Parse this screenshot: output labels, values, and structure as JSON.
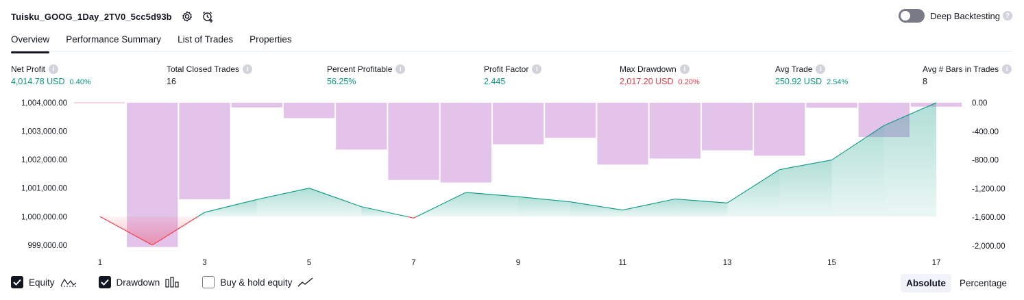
{
  "header": {
    "title": "Tuisku_GOOG_1Day_2TV0_5cc5d93b",
    "settings_icon": "gear-icon",
    "alert_icon": "alarm-add-icon"
  },
  "deep_backtesting": {
    "label": "Deep Backtesting",
    "enabled": false,
    "help": "?"
  },
  "tabs": [
    {
      "label": "Overview",
      "active": true
    },
    {
      "label": "Performance Summary",
      "active": false
    },
    {
      "label": "List of Trades",
      "active": false
    },
    {
      "label": "Properties",
      "active": false
    }
  ],
  "metrics": [
    {
      "label": "Net Profit",
      "value": "4,014.78 USD",
      "pct": "0.40%",
      "color": "#089981",
      "help": "i"
    },
    {
      "label": "Total Closed Trades",
      "value": "16",
      "pct": "",
      "color": "#131722",
      "help": "i"
    },
    {
      "label": "Percent Profitable",
      "value": "56.25%",
      "pct": "",
      "color": "#089981",
      "help": "i"
    },
    {
      "label": "Profit Factor",
      "value": "2.445",
      "pct": "",
      "color": "#089981",
      "help": "i"
    },
    {
      "label": "Max Drawdown",
      "value": "2,017.20 USD",
      "pct": "0.20%",
      "color": "#f23645",
      "help": "i"
    },
    {
      "label": "Avg Trade",
      "value": "250.92 USD",
      "pct": "2.54%",
      "color": "#089981",
      "help": "i"
    },
    {
      "label": "Avg # Bars in Trades",
      "value": "8",
      "pct": "",
      "color": "#131722",
      "help": "i"
    }
  ],
  "chart_data": {
    "type": "line",
    "x": [
      1,
      2,
      3,
      4,
      5,
      6,
      7,
      8,
      9,
      10,
      11,
      12,
      13,
      14,
      15,
      16,
      17
    ],
    "x_ticks": [
      "1",
      "3",
      "5",
      "7",
      "9",
      "11",
      "13",
      "15",
      "17"
    ],
    "left_ticks": [
      "1,004,000.00",
      "1,003,000.00",
      "1,002,000.00",
      "1,001,000.00",
      "1,000,000.00",
      "999,000.00"
    ],
    "right_ticks": [
      "0.00",
      "-400.00",
      "-800.00",
      "-1,200.00",
      "-1,600.00",
      "-2,000.00"
    ],
    "left_ylim": [
      998900,
      1004000
    ],
    "right_ylim": [
      -2030,
      0
    ],
    "baseline": 1000000,
    "series": [
      {
        "name": "Equity",
        "axis": "left",
        "values": [
          1000000,
          999000,
          1000150,
          1000600,
          1001000,
          1000350,
          999950,
          1000850,
          1000700,
          1000520,
          1000230,
          1000620,
          1000480,
          1001650,
          1001990,
          1003200,
          1004000
        ],
        "color_up": "#089981",
        "color_down": "#f23645"
      },
      {
        "name": "Drawdown",
        "axis": "right",
        "type": "bar",
        "x": [
          2,
          3,
          4,
          5,
          6,
          7,
          8,
          9,
          10,
          11,
          12,
          13,
          14,
          15,
          16,
          17
        ],
        "values": [
          -2017.2,
          -1350,
          -65,
          -215,
          -655,
          -1080,
          -1115,
          -580,
          -490,
          -865,
          -780,
          -665,
          -740,
          -70,
          -480,
          -55
        ],
        "color": "#e1bee7"
      }
    ]
  },
  "legend": [
    {
      "label": "Equity",
      "checked": true,
      "icon": "equity-line-icon"
    },
    {
      "label": "Drawdown",
      "checked": true,
      "icon": "drawdown-bars-icon"
    },
    {
      "label": "Buy & hold equity",
      "checked": false,
      "icon": "buy-hold-line-icon"
    }
  ],
  "modes": [
    {
      "label": "Absolute",
      "active": true
    },
    {
      "label": "Percentage",
      "active": false
    }
  ]
}
